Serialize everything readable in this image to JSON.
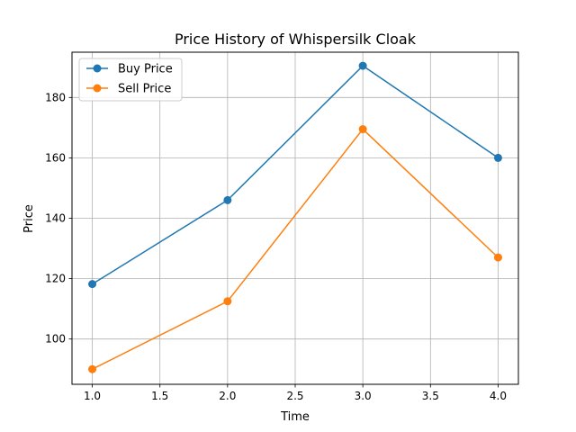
{
  "chart_data": {
    "type": "line",
    "title": "Price History of Whispersilk Cloak",
    "xlabel": "Time",
    "ylabel": "Price",
    "x": [
      1.0,
      2.0,
      3.0,
      4.0
    ],
    "xlim": [
      0.85,
      4.15
    ],
    "ylim": [
      85,
      195
    ],
    "xticks": [
      1.0,
      1.5,
      2.0,
      2.5,
      3.0,
      3.5,
      4.0
    ],
    "xtick_labels": [
      "1.0",
      "1.5",
      "2.0",
      "2.5",
      "3.0",
      "3.5",
      "4.0"
    ],
    "yticks": [
      100,
      120,
      140,
      160,
      180
    ],
    "ytick_labels": [
      "100",
      "120",
      "140",
      "160",
      "180"
    ],
    "grid": true,
    "legend_position": "top-left",
    "series": [
      {
        "name": "Buy Price",
        "color": "#1f77b4",
        "marker": "circle",
        "values": [
          118.2,
          146.0,
          190.5,
          160.0
        ]
      },
      {
        "name": "Sell Price",
        "color": "#ff7f0e",
        "marker": "circle",
        "values": [
          90.0,
          112.5,
          169.5,
          127.0
        ]
      }
    ]
  }
}
